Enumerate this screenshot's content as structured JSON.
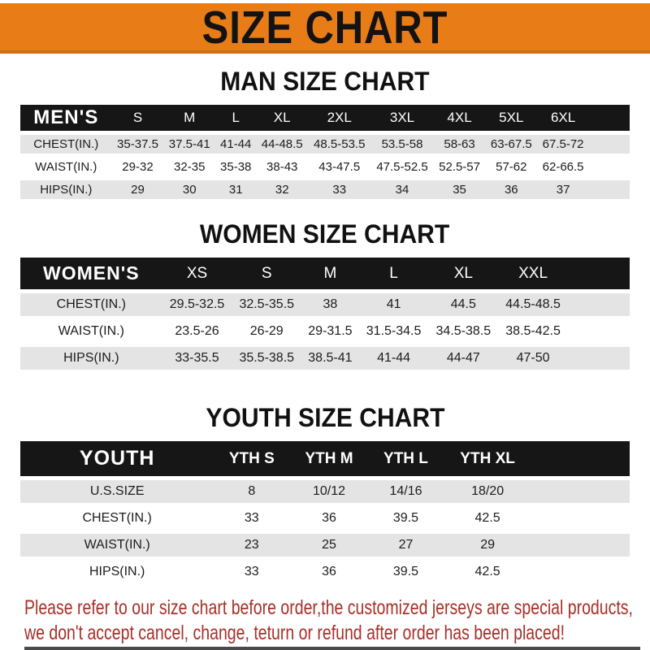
{
  "banner": {
    "title": "SIZE CHART"
  },
  "men": {
    "heading": "MAN SIZE CHART",
    "header": [
      "MEN'S",
      "S",
      "M",
      "L",
      "XL",
      "2XL",
      "3XL",
      "4XL",
      "5XL",
      "6XL"
    ],
    "rows": [
      {
        "label": "CHEST(IN.)",
        "values": [
          "35-37.5",
          "37.5-41",
          "41-44",
          "44-48.5",
          "48.5-53.5",
          "53.5-58",
          "58-63",
          "63-67.5",
          "67.5-72"
        ]
      },
      {
        "label": "WAIST(IN.)",
        "values": [
          "29-32",
          "32-35",
          "35-38",
          "38-43",
          "43-47.5",
          "47.5-52.5",
          "52.5-57",
          "57-62",
          "62-66.5"
        ]
      },
      {
        "label": "HIPS(IN.)",
        "values": [
          "29",
          "30",
          "31",
          "32",
          "33",
          "34",
          "35",
          "36",
          "37"
        ]
      }
    ]
  },
  "women": {
    "heading": "WOMEN SIZE CHART",
    "header": [
      "WOMEN'S",
      "XS",
      "S",
      "M",
      "L",
      "XL",
      "XXL"
    ],
    "rows": [
      {
        "label": "CHEST(IN.)",
        "values": [
          "29.5-32.5",
          "32.5-35.5",
          "38",
          "41",
          "44.5",
          "44.5-48.5"
        ]
      },
      {
        "label": "WAIST(IN.)",
        "values": [
          "23.5-26",
          "26-29",
          "29-31.5",
          "31.5-34.5",
          "34.5-38.5",
          "38.5-42.5"
        ]
      },
      {
        "label": "HIPS(IN.)",
        "values": [
          "33-35.5",
          "35.5-38.5",
          "38.5-41",
          "41-44",
          "44-47",
          "47-50"
        ]
      }
    ]
  },
  "youth": {
    "heading": "YOUTH SIZE CHART",
    "header": [
      "YOUTH",
      "YTH S",
      "YTH M",
      "YTH L",
      "YTH XL"
    ],
    "rows": [
      {
        "label": "U.S.SIZE",
        "values": [
          "8",
          "10/12",
          "14/16",
          "18/20"
        ]
      },
      {
        "label": "CHEST(IN.)",
        "values": [
          "33",
          "36",
          "39.5",
          "42.5"
        ]
      },
      {
        "label": "WAIST(IN.)",
        "values": [
          "23",
          "25",
          "27",
          "29"
        ]
      },
      {
        "label": "HIPS(IN.)",
        "values": [
          "33",
          "36",
          "39.5",
          "42.5"
        ]
      }
    ]
  },
  "footer": {
    "line1": "Please refer to our size chart before order,the customized jerseys are special products,",
    "line2": "we don't accept cancel, change, teturn or refund after order has been placed!"
  },
  "colors": {
    "banner_orange": "#E87D17",
    "banner_edge_orange": "#CF6F12",
    "table_header_black": "#161616",
    "row_gray": "#E4E4E4",
    "note_red": "#A63029",
    "bottom_strip_gray": "#4A4A4A"
  }
}
